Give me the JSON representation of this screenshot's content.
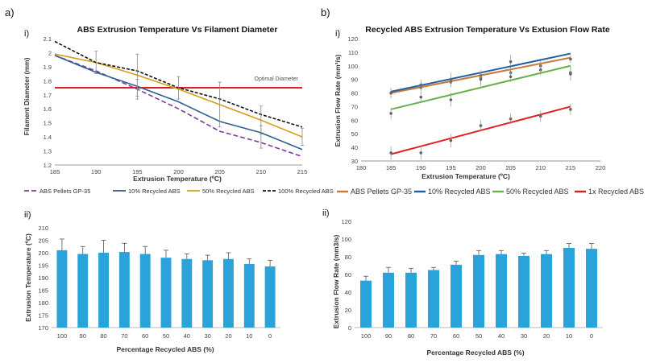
{
  "figure": {
    "panel_a": "a)",
    "panel_b": "b)",
    "sub_i": "i)",
    "sub_ii": "ii)"
  },
  "colors": {
    "purple": "#7b3d9b",
    "blue": "#2f5f8f",
    "gold": "#d4a017",
    "black": "#111111",
    "red": "#e02020",
    "orange": "#c8783a",
    "darkblue": "#1f5fa0",
    "green": "#6ab04c",
    "bar": "#29a3d9"
  },
  "chart_data": [
    {
      "id": "a1",
      "type": "line",
      "title": "ABS Extrusion Temperature Vs Filament Diameter",
      "xlabel": "Extrusion Temperature (ºC)",
      "ylabel": "Filament Diameter (mm)",
      "xlim": [
        185,
        215
      ],
      "ylim": [
        1.2,
        2.1
      ],
      "xticks": [
        185,
        190,
        195,
        200,
        205,
        210,
        215
      ],
      "yticks": [
        1.2,
        1.3,
        1.4,
        1.5,
        1.6,
        1.7,
        1.8,
        1.9,
        2,
        2.1
      ],
      "x": [
        185,
        190,
        195,
        200,
        205,
        210,
        215
      ],
      "series": [
        {
          "name": "ABS Pellets GP-35",
          "color": "#7b3d9b",
          "dash": "6,3",
          "values": [
            1.98,
            1.87,
            1.74,
            1.6,
            1.44,
            1.36,
            1.26
          ]
        },
        {
          "name": "10% Recycled ABS",
          "color": "#2f5f8f",
          "dash": "",
          "values": [
            1.98,
            1.86,
            1.76,
            1.65,
            1.51,
            1.43,
            1.31
          ]
        },
        {
          "name": "50% Recycled ABS",
          "color": "#d4a017",
          "dash": "",
          "values": [
            1.99,
            1.93,
            1.84,
            1.74,
            1.63,
            1.52,
            1.4
          ]
        },
        {
          "name": "100% Recycled ABS",
          "color": "#111111",
          "dash": "4,2",
          "values": [
            2.08,
            1.93,
            1.87,
            1.75,
            1.67,
            1.56,
            1.47
          ]
        }
      ],
      "error_bars": [
        {
          "x": 190,
          "y": 1.93,
          "err": 0.08
        },
        {
          "x": 195,
          "y": 1.84,
          "err": 0.15
        },
        {
          "x": 195,
          "y": 1.74,
          "err": 0.07
        },
        {
          "x": 200,
          "y": 1.75,
          "err": 0.08
        },
        {
          "x": 205,
          "y": 1.63,
          "err": 0.16
        },
        {
          "x": 210,
          "y": 1.52,
          "err": 0.1
        },
        {
          "x": 210,
          "y": 1.4,
          "err": 0.08
        },
        {
          "x": 215,
          "y": 1.4,
          "err": 0.06
        }
      ],
      "reference_line": {
        "y": 1.75,
        "label": "Optimal Diameter",
        "color": "#e02020"
      },
      "legend_position": "bottom",
      "grid": false
    },
    {
      "id": "b1",
      "type": "scatter",
      "title": "Recycled ABS Extrusion Temperature Vs Extusion Flow Rate",
      "xlabel": "Extrusion Temperature (ºC)",
      "ylabel": "Extrusion Flow Rate (mm³/s)",
      "xlim": [
        180,
        220
      ],
      "ylim": [
        30,
        120
      ],
      "xticks": [
        180,
        185,
        190,
        195,
        200,
        205,
        210,
        215,
        220
      ],
      "yticks": [
        30,
        40,
        50,
        60,
        70,
        80,
        90,
        100,
        110,
        120
      ],
      "series": [
        {
          "name": "ABS Pellets GP-35",
          "color": "#c8783a",
          "points": [
            [
              185,
              80
            ],
            [
              190,
              84
            ],
            [
              195,
              88
            ],
            [
              200,
              91
            ],
            [
              205,
              103
            ],
            [
              210,
              100
            ],
            [
              215,
              105
            ]
          ],
          "fit": [
            [
              185,
              80
            ],
            [
              215,
              106
            ]
          ],
          "err": [
            3,
            5,
            4,
            4,
            5,
            4,
            3
          ]
        },
        {
          "name": "10% Recycled ABS",
          "color": "#1f5fa0",
          "points": [
            [
              185,
              80
            ],
            [
              190,
              86
            ],
            [
              195,
              90
            ],
            [
              200,
              93
            ],
            [
              205,
              95
            ],
            [
              210,
              100
            ],
            [
              215,
              95
            ]
          ],
          "fit": [
            [
              185,
              81
            ],
            [
              215,
              109
            ]
          ],
          "err": [
            4,
            4,
            5,
            4,
            4,
            4,
            5
          ]
        },
        {
          "name": "50% Recycled ABS",
          "color": "#6ab04c",
          "points": [
            [
              185,
              65
            ],
            [
              190,
              77
            ],
            [
              195,
              75
            ],
            [
              200,
              90
            ],
            [
              205,
              92
            ],
            [
              210,
              97
            ],
            [
              215,
              94
            ]
          ],
          "fit": [
            [
              185,
              68
            ],
            [
              215,
              100
            ]
          ],
          "err": [
            4,
            4,
            5,
            5,
            4,
            4,
            5
          ]
        },
        {
          "name": "1x Recycled ABS",
          "color": "#e02020",
          "points": [
            [
              185,
              36
            ],
            [
              190,
              36
            ],
            [
              195,
              45
            ],
            [
              200,
              56
            ],
            [
              205,
              61
            ],
            [
              210,
              63
            ],
            [
              215,
              68
            ]
          ],
          "fit": [
            [
              185,
              35
            ],
            [
              215,
              70
            ]
          ],
          "err": [
            5,
            5,
            5,
            4,
            4,
            4,
            4
          ]
        }
      ],
      "legend_position": "bottom",
      "grid": false
    },
    {
      "id": "a2",
      "type": "bar",
      "xlabel": "Percentage Recycled ABS (%)",
      "ylabel": "Extrusion Temperature (ºC)",
      "ylim": [
        170,
        210
      ],
      "yticks": [
        170,
        175,
        180,
        185,
        190,
        195,
        200,
        205,
        210
      ],
      "categories": [
        "100",
        "90",
        "80",
        "70",
        "60",
        "50",
        "40",
        "30",
        "20",
        "10",
        "0"
      ],
      "values": [
        201,
        199.5,
        200,
        200.3,
        199.5,
        198,
        197.5,
        197,
        197.5,
        195.5,
        194.5
      ],
      "errors": [
        4.5,
        3,
        5,
        3.5,
        3,
        3,
        2,
        2,
        2.5,
        2,
        2.5
      ],
      "color": "#29a3d9",
      "grid": false
    },
    {
      "id": "b2",
      "type": "bar",
      "xlabel": "Percentage Recycled ABS (%)",
      "ylabel": "Extrusion Flow Rate (mm3/s)",
      "ylim": [
        0,
        120
      ],
      "yticks": [
        0,
        20,
        40,
        60,
        80,
        100,
        120
      ],
      "categories": [
        "100",
        "90",
        "80",
        "70",
        "60",
        "50",
        "40",
        "30",
        "20",
        "10",
        "0"
      ],
      "values": [
        53,
        62,
        62,
        65,
        71,
        82,
        83,
        81,
        83,
        90,
        89
      ],
      "errors": [
        5,
        6,
        5,
        3,
        4,
        5,
        4,
        3,
        4,
        5,
        6
      ],
      "color": "#29a3d9",
      "grid": false
    }
  ]
}
